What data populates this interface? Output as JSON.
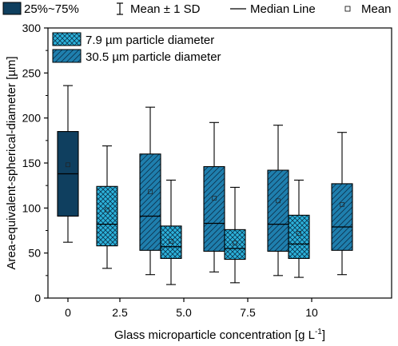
{
  "chart_data": {
    "type": "box",
    "xlabel": "Glass microparticle concentration [g L",
    "xlabel_superscript": "-1",
    "xlabel_suffix": "]",
    "ylabel": "Area-equivalent-spherical-diameter [µm]",
    "ylim": [
      0,
      300
    ],
    "yticks": [
      0,
      50,
      100,
      150,
      200,
      250,
      300
    ],
    "categories": [
      "0",
      "2.5",
      "5.0",
      "7.5",
      "10"
    ],
    "top_legend": [
      {
        "key": "box",
        "label": "25%~75%"
      },
      {
        "key": "whisker",
        "label": "Mean ± 1 SD"
      },
      {
        "key": "line",
        "label": "Median Line"
      },
      {
        "key": "mean",
        "label": "Mean"
      }
    ],
    "series": [
      {
        "name": "",
        "fill": "#0f3f5f",
        "pattern": "none",
        "boxes": [
          {
            "category": "0",
            "q1": 91,
            "median": 138,
            "q3": 185,
            "mean": 148,
            "whisker_low": 62,
            "whisker_high": 236
          }
        ]
      },
      {
        "name": "7.9 µm particle diameter",
        "fill": "#2bb2da",
        "pattern": "crosshatch",
        "boxes": [
          {
            "category": "2.5",
            "q1": 58,
            "median": 82,
            "q3": 124,
            "mean": 98,
            "whisker_low": 33,
            "whisker_high": 169
          },
          {
            "category": "5.0",
            "q1": 44,
            "median": 57,
            "q3": 80,
            "mean": 63,
            "whisker_low": 15,
            "whisker_high": 131
          },
          {
            "category": "7.5",
            "q1": 43,
            "median": 55,
            "q3": 76,
            "mean": 61,
            "whisker_low": 17,
            "whisker_high": 123
          },
          {
            "category": "10",
            "q1": 44,
            "median": 60,
            "q3": 92,
            "mean": 72,
            "whisker_low": 23,
            "whisker_high": 131
          }
        ]
      },
      {
        "name": "30.5 µm particle diameter",
        "fill": "#1f7fae",
        "pattern": "diagonal",
        "boxes": [
          {
            "category": "2.5",
            "q1": 53,
            "median": 91,
            "q3": 160,
            "mean": 118,
            "whisker_low": 26,
            "whisker_high": 212
          },
          {
            "category": "5.0",
            "q1": 52,
            "median": 83,
            "q3": 146,
            "mean": 111,
            "whisker_low": 29,
            "whisker_high": 195
          },
          {
            "category": "7.5",
            "q1": 52,
            "median": 82,
            "q3": 142,
            "mean": 108,
            "whisker_low": 25,
            "whisker_high": 192
          },
          {
            "category": "10",
            "q1": 53,
            "median": 79,
            "q3": 127,
            "mean": 104,
            "whisker_low": 26,
            "whisker_high": 184
          }
        ]
      }
    ],
    "inner_legend_placement": "top-left"
  }
}
